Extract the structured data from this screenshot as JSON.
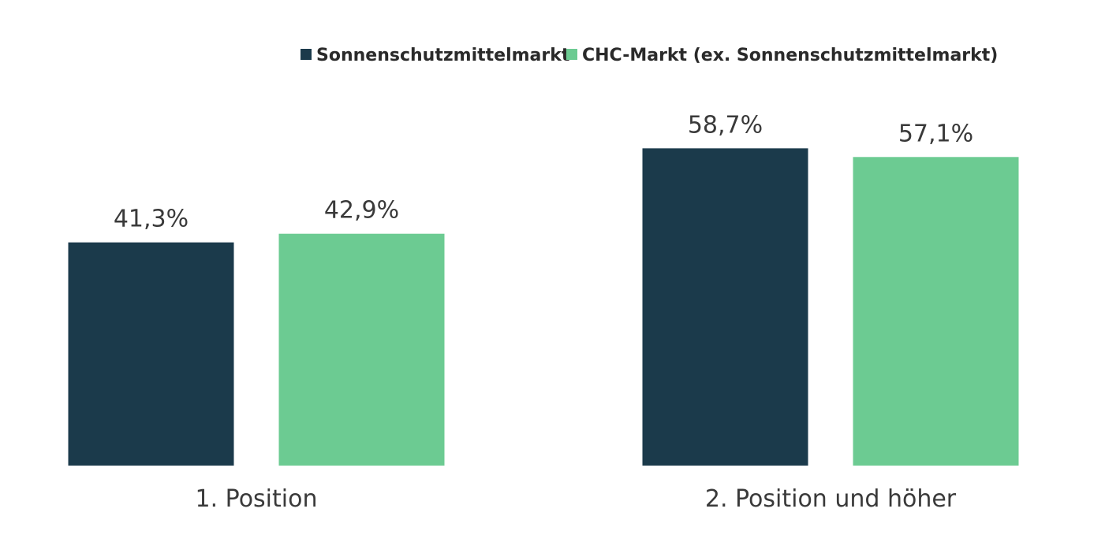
{
  "chart_data": {
    "type": "bar",
    "categories": [
      "1. Position",
      "2. Position und höher"
    ],
    "series": [
      {
        "name": "Sonnenschutzmittelmarkt",
        "values": [
          41.3,
          58.7
        ],
        "labels": [
          "41,3%",
          "58,7%"
        ],
        "color": "#1b3a4b"
      },
      {
        "name": "CHC-Markt (ex. Sonnenschutzmittelmarkt)",
        "values": [
          42.9,
          57.1
        ],
        "labels": [
          "42,9%",
          "57,1%"
        ],
        "color": "#6ccb92"
      }
    ],
    "title": "",
    "xlabel": "",
    "ylabel": "",
    "ylim": [
      0,
      60
    ],
    "grid": false,
    "legend_position": "top"
  }
}
